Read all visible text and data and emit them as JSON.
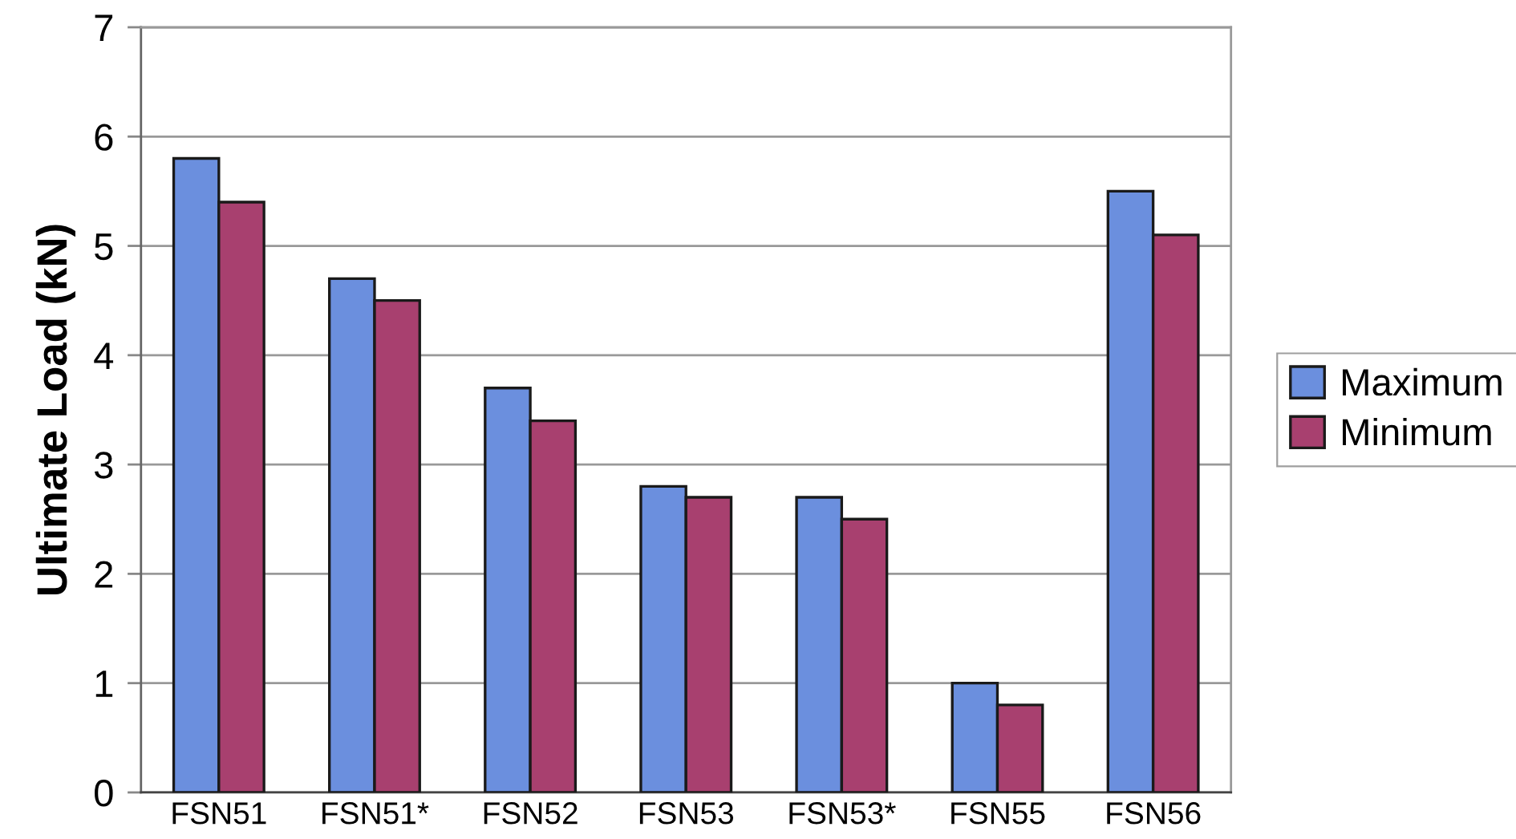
{
  "chart_data": {
    "type": "bar",
    "ylabel": "Ultimate Load (kN)",
    "categories": [
      "FSN51",
      "FSN51*",
      "FSN52",
      "FSN53",
      "FSN53*",
      "FSN55",
      "FSN56"
    ],
    "series": [
      {
        "name": "Maximum",
        "color": "#6b8fde",
        "values": [
          5.8,
          4.7,
          3.7,
          2.8,
          2.7,
          1.0,
          5.5
        ]
      },
      {
        "name": "Minimum",
        "color": "#a8406f",
        "values": [
          5.4,
          4.5,
          3.4,
          2.7,
          2.5,
          0.8,
          5.1
        ]
      }
    ],
    "ylim": [
      0,
      7
    ],
    "yticks": [
      0,
      1,
      2,
      3,
      4,
      5,
      6,
      7
    ],
    "grid": "y",
    "legend": "right"
  }
}
